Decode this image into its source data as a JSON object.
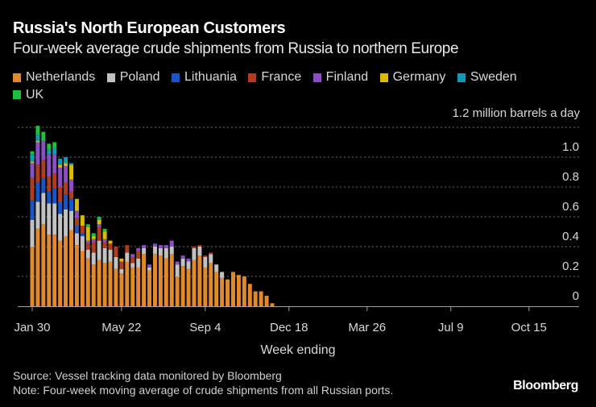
{
  "header": {
    "title": "Russia's North European Customers",
    "subtitle": "Four-week average crude shipments from Russia to northern Europe"
  },
  "legend": [
    {
      "label": "Netherlands",
      "color": "#e08a2c"
    },
    {
      "label": "Poland",
      "color": "#c2c2c2"
    },
    {
      "label": "Lithuania",
      "color": "#1756c9"
    },
    {
      "label": "France",
      "color": "#b03d1e"
    },
    {
      "label": "Finland",
      "color": "#8a4fc4"
    },
    {
      "label": "Germany",
      "color": "#d9bc00"
    },
    {
      "label": "Sweden",
      "color": "#109bb3"
    },
    {
      "label": "UK",
      "color": "#1fbf3e"
    }
  ],
  "footer": {
    "source": "Source: Vessel tracking data monitored by Bloomberg",
    "note": "Note: Four-week moving average of crude shipments from all Russian ports.",
    "brand": "Bloomberg"
  },
  "chart_data": {
    "type": "bar",
    "stacked": true,
    "title": "Russia's North European Customers",
    "subtitle": "Four-week average crude shipments from Russia to northern Europe",
    "xlabel": "Week ending",
    "ylabel": "million barrels a day",
    "unit_label": "1.2 million barrels a day",
    "ylim": [
      0,
      1.2
    ],
    "yticks": [
      "0",
      "0.2",
      "0.4",
      "0.6",
      "0.8",
      "1.0",
      "1.2"
    ],
    "xticks": [
      "Jan 30",
      "May 22",
      "Sep 4",
      "Dec 18",
      "Mar 26",
      "Jul 9",
      "Oct 15"
    ],
    "xtick_weeks": [
      0,
      16,
      31,
      46,
      60,
      75,
      89
    ],
    "x_total_weeks": 98,
    "grid": true,
    "legend_position": "top-left",
    "series_names": [
      "Netherlands",
      "Poland",
      "Lithuania",
      "France",
      "Finland",
      "Germany",
      "Sweden",
      "UK"
    ],
    "weeks": [
      [
        0.4,
        0.18,
        0.13,
        0.15,
        0.1,
        0.01,
        0.05,
        0.02
      ],
      [
        0.52,
        0.18,
        0.13,
        0.12,
        0.15,
        0.01,
        0.04,
        0.06
      ],
      [
        0.55,
        0.21,
        0.1,
        0.12,
        0.13,
        0.0,
        0.0,
        0.06
      ],
      [
        0.48,
        0.21,
        0.08,
        0.1,
        0.15,
        0.0,
        0.03,
        0.04
      ],
      [
        0.48,
        0.21,
        0.1,
        0.1,
        0.13,
        0.0,
        0.04,
        0.04
      ],
      [
        0.44,
        0.18,
        0.08,
        0.1,
        0.13,
        0.02,
        0.04,
        0.0
      ],
      [
        0.47,
        0.18,
        0.1,
        0.08,
        0.11,
        0.02,
        0.04,
        0.0
      ],
      [
        0.51,
        0.13,
        0.08,
        0.05,
        0.08,
        0.1,
        0.01,
        0.0
      ],
      [
        0.41,
        0.08,
        0.05,
        0.05,
        0.05,
        0.08,
        0.0,
        0.0
      ],
      [
        0.37,
        0.1,
        0.02,
        0.05,
        0.0,
        0.07,
        0.0,
        0.0
      ],
      [
        0.32,
        0.06,
        0.0,
        0.04,
        0.02,
        0.09,
        0.0,
        0.02
      ],
      [
        0.28,
        0.08,
        0.0,
        0.07,
        0.02,
        0.02,
        0.0,
        0.02
      ],
      [
        0.31,
        0.13,
        0.0,
        0.09,
        0.02,
        0.03,
        0.0,
        0.02
      ],
      [
        0.29,
        0.1,
        0.0,
        0.04,
        0.02,
        0.05,
        0.0,
        0.02
      ],
      [
        0.3,
        0.08,
        0.0,
        0.04,
        0.0,
        0.02,
        0.0,
        0.0
      ],
      [
        0.25,
        0.08,
        0.0,
        0.07,
        0.0,
        0.0,
        0.0,
        0.0
      ],
      [
        0.22,
        0.03,
        0.0,
        0.05,
        0.0,
        0.02,
        0.0,
        0.0
      ],
      [
        0.3,
        0.06,
        0.0,
        0.05,
        0.0,
        0.0,
        0.0,
        0.0
      ],
      [
        0.26,
        0.03,
        0.0,
        0.04,
        0.02,
        0.0,
        0.0,
        0.0
      ],
      [
        0.26,
        0.06,
        0.0,
        0.05,
        0.02,
        0.0,
        0.0,
        0.0
      ],
      [
        0.35,
        0.04,
        0.0,
        0.0,
        0.02,
        0.0,
        0.0,
        0.0
      ],
      [
        0.24,
        0.02,
        0.0,
        0.0,
        0.02,
        0.0,
        0.0,
        0.0
      ],
      [
        0.35,
        0.05,
        0.0,
        0.0,
        0.02,
        0.0,
        0.0,
        0.0
      ],
      [
        0.34,
        0.05,
        0.0,
        0.0,
        0.02,
        0.0,
        0.0,
        0.0
      ],
      [
        0.32,
        0.07,
        0.0,
        0.0,
        0.02,
        0.0,
        0.0,
        0.0
      ],
      [
        0.35,
        0.05,
        0.0,
        0.0,
        0.04,
        0.0,
        0.0,
        0.0
      ],
      [
        0.2,
        0.08,
        0.0,
        0.0,
        0.02,
        0.0,
        0.0,
        0.0
      ],
      [
        0.27,
        0.05,
        0.0,
        0.0,
        0.02,
        0.0,
        0.0,
        0.0
      ],
      [
        0.25,
        0.05,
        0.0,
        0.0,
        0.02,
        0.0,
        0.0,
        0.0
      ],
      [
        0.31,
        0.08,
        0.0,
        0.01,
        0.0,
        0.0,
        0.0,
        0.0
      ],
      [
        0.34,
        0.06,
        0.0,
        0.01,
        0.0,
        0.0,
        0.0,
        0.0
      ],
      [
        0.26,
        0.07,
        0.0,
        0.01,
        0.0,
        0.0,
        0.0,
        0.0
      ],
      [
        0.29,
        0.06,
        0.0,
        0.01,
        0.0,
        0.0,
        0.0,
        0.0
      ],
      [
        0.23,
        0.05,
        0.0,
        0.0,
        0.0,
        0.0,
        0.0,
        0.0
      ],
      [
        0.19,
        0.04,
        0.0,
        0.0,
        0.0,
        0.0,
        0.0,
        0.0
      ],
      [
        0.18,
        0.0,
        0.0,
        0.0,
        0.0,
        0.0,
        0.0,
        0.0
      ],
      [
        0.23,
        0.0,
        0.0,
        0.0,
        0.0,
        0.0,
        0.0,
        0.0
      ],
      [
        0.21,
        0.0,
        0.0,
        0.0,
        0.0,
        0.0,
        0.0,
        0.0
      ],
      [
        0.2,
        0.0,
        0.0,
        0.0,
        0.0,
        0.0,
        0.0,
        0.0
      ],
      [
        0.15,
        0.0,
        0.0,
        0.0,
        0.0,
        0.0,
        0.0,
        0.0
      ],
      [
        0.1,
        0.0,
        0.0,
        0.0,
        0.0,
        0.0,
        0.0,
        0.0
      ],
      [
        0.1,
        0.0,
        0.0,
        0.0,
        0.0,
        0.0,
        0.0,
        0.0
      ],
      [
        0.07,
        0.0,
        0.0,
        0.0,
        0.0,
        0.0,
        0.0,
        0.0
      ],
      [
        0.02,
        0.0,
        0.0,
        0.0,
        0.0,
        0.0,
        0.0,
        0.0
      ]
    ]
  }
}
